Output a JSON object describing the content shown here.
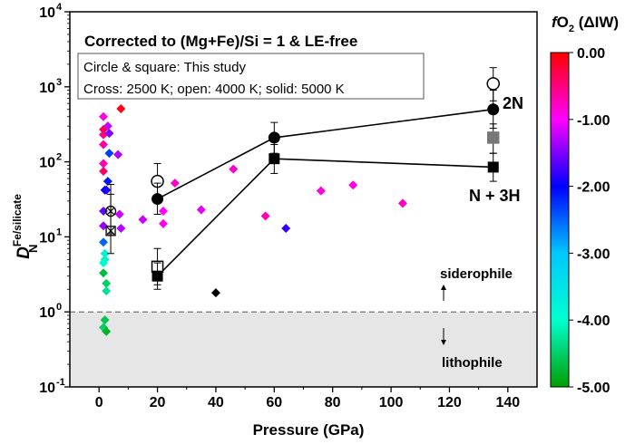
{
  "chart_data": {
    "type": "scatter",
    "title": "Corrected to (Mg+Fe)/Si = 1 & LE-free",
    "legend_box": {
      "line1": "Circle & square: This study",
      "line2": "Cross: 2500 K; open: 4000 K; solid: 5000 K"
    },
    "xlabel": "Pressure (GPa)",
    "ylabel_main": "D",
    "ylabel_sub": "N",
    "ylabel_sup": "Fe/silicate",
    "xlim": [
      -10,
      150
    ],
    "ylim": [
      0.1,
      10000
    ],
    "yscale": "log",
    "x_ticks": [
      0,
      20,
      40,
      60,
      80,
      100,
      120,
      140
    ],
    "x_tick_labels": [
      "0",
      "20",
      "40",
      "60",
      "80",
      "100",
      "120",
      "140"
    ],
    "y_ticks": [
      0.1,
      1,
      10,
      100,
      1000,
      10000
    ],
    "y_tick_base": "10",
    "y_tick_exps": [
      "-1",
      "0",
      "1",
      "2",
      "3",
      "4"
    ],
    "reference_line": {
      "y": 1.0,
      "style": "dashed"
    },
    "lithophile_region": {
      "ymin": 0.1,
      "ymax": 1.0,
      "color": "#e6e6e6"
    },
    "region_labels": {
      "upper": "siderophile",
      "lower": "lithophile"
    },
    "colorbar": {
      "title_italic": "f",
      "title_sub": "O",
      "title_sub2": "2",
      "title_rest": " (ΔIW)",
      "min": -5.0,
      "max": 0.0,
      "ticks": [
        0.0,
        -1.0,
        -2.0,
        -3.0,
        -4.0,
        -5.0
      ],
      "tick_labels": [
        "0.00",
        "-1.00",
        "-2.00",
        "-3.00",
        "-4.00",
        "-5.00"
      ],
      "stops": [
        {
          "v": 0.0,
          "c": "#ff0000"
        },
        {
          "v": -1.0,
          "c": "#ff00ff"
        },
        {
          "v": -2.0,
          "c": "#0000ff"
        },
        {
          "v": -3.0,
          "c": "#00c8ff"
        },
        {
          "v": -4.0,
          "c": "#00ffd0"
        },
        {
          "v": -5.0,
          "c": "#00a000"
        }
      ]
    },
    "literature_points": [
      {
        "x": 1.5,
        "y": 400,
        "fo2": -0.9
      },
      {
        "x": 1.5,
        "y": 270,
        "fo2": -0.3
      },
      {
        "x": 1.5,
        "y": 230,
        "fo2": -0.5
      },
      {
        "x": 1.5,
        "y": 170,
        "fo2": -0.6
      },
      {
        "x": 1.5,
        "y": 95,
        "fo2": -0.7
      },
      {
        "x": 1.5,
        "y": 75,
        "fo2": -0.4
      },
      {
        "x": 2.0,
        "y": 42,
        "fo2": -2.0
      },
      {
        "x": 2.5,
        "y": 42,
        "fo2": -1.9
      },
      {
        "x": 1.5,
        "y": 22,
        "fo2": -1.6
      },
      {
        "x": 1.5,
        "y": 14,
        "fo2": -1.4
      },
      {
        "x": 1.5,
        "y": 8.5,
        "fo2": -2.5
      },
      {
        "x": 2.0,
        "y": 6.0,
        "fo2": -3.8
      },
      {
        "x": 2.0,
        "y": 5.0,
        "fo2": -4.1
      },
      {
        "x": 1.5,
        "y": 4.5,
        "fo2": -3.9
      },
      {
        "x": 1.5,
        "y": 3.3,
        "fo2": -4.7
      },
      {
        "x": 2.5,
        "y": 2.4,
        "fo2": -4.5
      },
      {
        "x": 2.5,
        "y": 1.9,
        "fo2": -4.3
      },
      {
        "x": 2.0,
        "y": 0.78,
        "fo2": -4.6
      },
      {
        "x": 1.5,
        "y": 0.62,
        "fo2": -4.5
      },
      {
        "x": 2.5,
        "y": 0.55,
        "fo2": -4.8
      },
      {
        "x": 3.0,
        "y": 300,
        "fo2": -1.2
      },
      {
        "x": 3.5,
        "y": 240,
        "fo2": -1.5
      },
      {
        "x": 3.5,
        "y": 130,
        "fo2": -2.3
      },
      {
        "x": 3.0,
        "y": 55,
        "fo2": -2.1
      },
      {
        "x": 7.5,
        "y": 510,
        "fo2": -0.1
      },
      {
        "x": 6.5,
        "y": 125,
        "fo2": -1.3
      },
      {
        "x": 7.0,
        "y": 20,
        "fo2": -1.2
      },
      {
        "x": 7.5,
        "y": 13,
        "fo2": -1.3
      },
      {
        "x": 15,
        "y": 17,
        "fo2": -1.2
      },
      {
        "x": 22,
        "y": 22,
        "fo2": -1.0
      },
      {
        "x": 22,
        "y": 15,
        "fo2": -0.9
      },
      {
        "x": 26,
        "y": 52,
        "fo2": -0.8
      },
      {
        "x": 35,
        "y": 23,
        "fo2": -1.1
      },
      {
        "x": 46,
        "y": 80,
        "fo2": -0.8
      },
      {
        "x": 57,
        "y": 19,
        "fo2": -0.7
      },
      {
        "x": 64,
        "y": 13,
        "fo2": -1.8
      },
      {
        "x": 76,
        "y": 41,
        "fo2": -0.9
      },
      {
        "x": 87,
        "y": 49,
        "fo2": -0.9
      },
      {
        "x": 104,
        "y": 28,
        "fo2": -0.8
      },
      {
        "x": 40,
        "y": 1.8,
        "color": "#000000"
      }
    ],
    "cross_points": [
      {
        "x": 4.0,
        "y": 22,
        "lo": 11,
        "hi": 37
      },
      {
        "x": 4.0,
        "y": 12,
        "lo": 6,
        "hi": 50
      }
    ],
    "series": [
      {
        "name": "2N",
        "marker": "circle",
        "solid": [
          {
            "x": 20,
            "y": 32,
            "lo": 20,
            "hi": 52
          },
          {
            "x": 60,
            "y": 210,
            "lo": 130,
            "hi": 335
          },
          {
            "x": 135,
            "y": 500,
            "lo": 280,
            "hi": 900
          }
        ],
        "open": [
          {
            "x": 20,
            "y": 55,
            "lo": 30,
            "hi": 95
          },
          {
            "x": 135,
            "y": 1100,
            "lo": 650,
            "hi": 1800
          }
        ]
      },
      {
        "name": "N + 3H",
        "marker": "square",
        "solid": [
          {
            "x": 20,
            "y": 3.0,
            "lo": 2.0,
            "hi": 4.5
          },
          {
            "x": 60,
            "y": 110,
            "lo": 70,
            "hi": 170
          },
          {
            "x": 135,
            "y": 85,
            "lo": 55,
            "hi": 130
          }
        ],
        "open": [
          {
            "x": 20,
            "y": 4.0,
            "lo": 2.3,
            "hi": 7.0
          },
          {
            "x": 135,
            "y": 210,
            "lo": 130,
            "hi": 320
          }
        ]
      }
    ]
  }
}
